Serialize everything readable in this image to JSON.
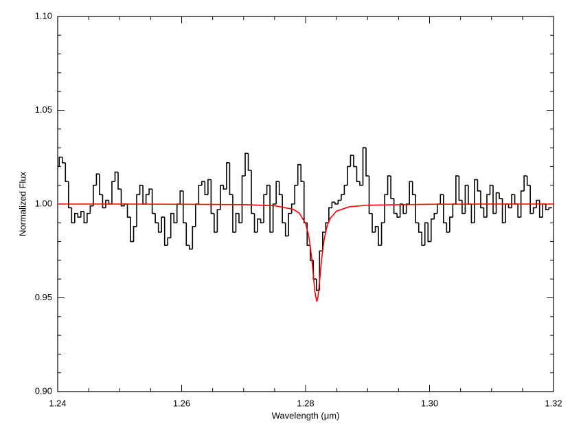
{
  "chart_data": {
    "type": "line",
    "xlabel": "Wavelength (μm)",
    "ylabel": "Normalized Flux",
    "xlim": [
      1.24,
      1.32
    ],
    "xticks": [
      1.24,
      1.26,
      1.28,
      {
        "value": 1.3,
        "label": "1.30"
      },
      1.32
    ],
    "ylim": [
      0.9,
      1.1
    ],
    "yticks": [
      {
        "value": 0.9,
        "label": "0.90"
      },
      0.95,
      {
        "value": 1.0,
        "label": "1.00"
      },
      1.05,
      {
        "value": 1.1,
        "label": "1.10"
      }
    ],
    "series": [
      {
        "color": "#000000",
        "step": true,
        "x": [
          1.24,
          1.2405,
          1.241,
          1.2415,
          1.242,
          1.2425,
          1.243,
          1.2435,
          1.244,
          1.2445,
          1.245,
          1.2455,
          1.246,
          1.2465,
          1.247,
          1.2475,
          1.248,
          1.2485,
          1.249,
          1.2495,
          1.25,
          1.2505,
          1.251,
          1.2515,
          1.252,
          1.2525,
          1.253,
          1.2535,
          1.254,
          1.2545,
          1.255,
          1.2555,
          1.256,
          1.2565,
          1.257,
          1.2575,
          1.258,
          1.2585,
          1.259,
          1.2595,
          1.26,
          1.2605,
          1.261,
          1.2615,
          1.262,
          1.2625,
          1.263,
          1.2635,
          1.264,
          1.2645,
          1.265,
          1.2655,
          1.266,
          1.2665,
          1.267,
          1.2675,
          1.268,
          1.2685,
          1.269,
          1.2695,
          1.27,
          1.2705,
          1.271,
          1.2715,
          1.272,
          1.2725,
          1.273,
          1.2735,
          1.274,
          1.2745,
          1.275,
          1.2755,
          1.276,
          1.2765,
          1.277,
          1.2775,
          1.278,
          1.2785,
          1.279,
          1.2795,
          1.28,
          1.2805,
          1.281,
          1.2815,
          1.282,
          1.2825,
          1.283,
          1.2835,
          1.284,
          1.2845,
          1.285,
          1.2855,
          1.286,
          1.2865,
          1.287,
          1.2875,
          1.288,
          1.2885,
          1.289,
          1.2895,
          1.29,
          1.2905,
          1.291,
          1.2915,
          1.292,
          1.2925,
          1.293,
          1.2935,
          1.294,
          1.2945,
          1.295,
          1.2955,
          1.296,
          1.2965,
          1.297,
          1.2975,
          1.298,
          1.2985,
          1.299,
          1.2995,
          1.3,
          1.3005,
          1.301,
          1.3015,
          1.302,
          1.3025,
          1.303,
          1.3035,
          1.304,
          1.3045,
          1.305,
          1.3055,
          1.306,
          1.3065,
          1.307,
          1.3075,
          1.308,
          1.3085,
          1.309,
          1.3095,
          1.31,
          1.3105,
          1.311,
          1.3115,
          1.312,
          1.3125,
          1.313,
          1.3135,
          1.314,
          1.3145,
          1.315,
          1.3155,
          1.316,
          1.3165,
          1.317,
          1.3175,
          1.318,
          1.3185,
          1.319,
          1.3195
        ],
        "values": [
          1.02,
          1.025,
          1.022,
          1.012,
          0.998,
          0.99,
          0.995,
          0.993,
          0.996,
          0.99,
          0.995,
          0.999,
          1.01,
          1.016,
          1.005,
          0.998,
          1.002,
          1.0,
          1.012,
          1.017,
          1.008,
          0.999,
          1.0,
          0.993,
          0.98,
          0.988,
          1.005,
          1.01,
          1.0,
          1.005,
          1.008,
          0.995,
          0.99,
          0.985,
          0.993,
          0.978,
          0.982,
          0.995,
          0.99,
          1.0,
          1.007,
          0.99,
          0.978,
          0.976,
          0.988,
          1.0,
          1.01,
          1.012,
          1.005,
          1.013,
          0.995,
          0.985,
          0.997,
          1.01,
          1.008,
          1.022,
          1.005,
          0.985,
          0.995,
          0.99,
          1.015,
          1.027,
          1.018,
          0.995,
          0.985,
          0.992,
          0.99,
          1.005,
          1.01,
          0.985,
          1.0,
          1.012,
          1.005,
          0.99,
          0.983,
          0.995,
          1.0,
          1.01,
          1.021,
          1.012,
          0.99,
          0.978,
          0.97,
          0.96,
          0.954,
          0.975,
          0.985,
          0.99,
          0.998,
          1.001,
          1.0,
          1.002,
          1.005,
          1.01,
          1.02,
          1.026,
          1.02,
          1.012,
          1.01,
          1.03,
          1.015,
          0.995,
          0.985,
          0.988,
          0.978,
          0.99,
          1.005,
          1.015,
          1.003,
          0.995,
          0.993,
          1.0,
          0.995,
          1.0,
          1.012,
          1.005,
          0.99,
          0.985,
          0.978,
          0.99,
          0.98,
          0.992,
          0.995,
          1.0,
          1.005,
          0.99,
          0.985,
          0.993,
          1.0,
          1.015,
          1.002,
          0.995,
          1.01,
          1.0,
          0.99,
          1.013,
          1.007,
          0.998,
          0.993,
          1.005,
          1.01,
          0.995,
          1.006,
          1.003,
          0.99,
          1.0,
          0.998,
          1.005,
          1.0,
          0.993,
          1.007,
          1.015,
          1.01,
          0.995,
          0.998,
          1.002,
          0.993,
          1.0,
          0.997,
          0.998
        ]
      },
      {
        "color": "#ff0000",
        "step": false,
        "x": [
          1.24,
          1.25,
          1.26,
          1.27,
          1.275,
          1.278,
          1.279,
          1.28,
          1.2805,
          1.281,
          1.2813,
          1.2815,
          1.2818,
          1.282,
          1.2823,
          1.2826,
          1.283,
          1.2835,
          1.284,
          1.285,
          1.287,
          1.29,
          1.3,
          1.31,
          1.32
        ],
        "values": [
          1.0,
          1.0,
          0.9999,
          0.9997,
          0.9991,
          0.9972,
          0.9951,
          0.9896,
          0.9832,
          0.971,
          0.9603,
          0.9532,
          0.948,
          0.9504,
          0.9603,
          0.971,
          0.9813,
          0.9886,
          0.9925,
          0.9962,
          0.9985,
          0.9994,
          0.9999,
          1.0,
          1.0
        ]
      }
    ]
  }
}
